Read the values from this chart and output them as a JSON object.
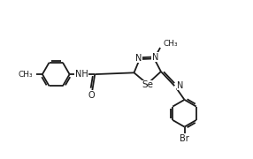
{
  "bg_color": "#ffffff",
  "line_color": "#1a1a1a",
  "lw": 1.3,
  "font_size": 7.0,
  "xlim": [
    0.0,
    9.5
  ],
  "ylim": [
    0.5,
    6.5
  ]
}
